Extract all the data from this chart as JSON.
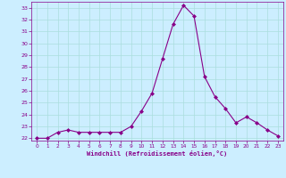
{
  "x": [
    0,
    1,
    2,
    3,
    4,
    5,
    6,
    7,
    8,
    9,
    10,
    11,
    12,
    13,
    14,
    15,
    16,
    17,
    18,
    19,
    20,
    21,
    22,
    23
  ],
  "y": [
    22,
    22,
    22.5,
    22.7,
    22.5,
    22.5,
    22.5,
    22.5,
    22.5,
    23,
    24.3,
    25.8,
    28.7,
    31.6,
    33.2,
    32.3,
    27.2,
    25.5,
    24.5,
    23.3,
    23.8,
    23.3,
    22.7,
    22.2
  ],
  "xlabel": "Windchill (Refroidissement éolien,°C)",
  "ylim": [
    21.8,
    33.5
  ],
  "xlim": [
    -0.5,
    23.5
  ],
  "yticks": [
    22,
    23,
    24,
    25,
    26,
    27,
    28,
    29,
    30,
    31,
    32,
    33
  ],
  "xticks": [
    0,
    1,
    2,
    3,
    4,
    5,
    6,
    7,
    8,
    9,
    10,
    11,
    12,
    13,
    14,
    15,
    16,
    17,
    18,
    19,
    20,
    21,
    22,
    23
  ],
  "line_color": "#880088",
  "marker": "D",
  "marker_size": 2.0,
  "bg_color": "#cceeff",
  "grid_color": "#aadddd",
  "xlabel_color": "#880088",
  "tick_color": "#880088",
  "line_width": 0.8
}
